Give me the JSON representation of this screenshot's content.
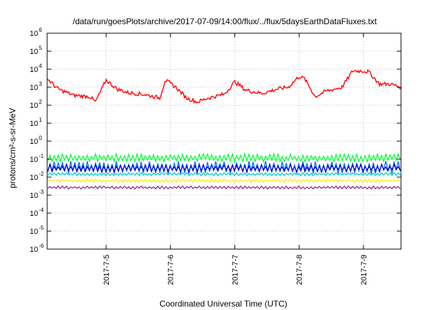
{
  "chart_data": {
    "type": "line",
    "title": "/data/run/goesPlots/archive/2017-07-09/14:00/flux/../flux/5daysEarthDataFluxes.txt",
    "xlabel": "Coordinated Universal Time (UTC)",
    "ylabel": "protons/cm²-s-sr-MeV",
    "y_scale": "log",
    "ylim": [
      1e-06,
      1000000.0
    ],
    "y_ticks": [
      {
        "base": "10",
        "exp": "-6"
      },
      {
        "base": "10",
        "exp": "-5"
      },
      {
        "base": "10",
        "exp": "-4"
      },
      {
        "base": "10",
        "exp": "-3"
      },
      {
        "base": "10",
        "exp": "-2"
      },
      {
        "base": "10",
        "exp": "-1"
      },
      {
        "base": "10",
        "exp": "0"
      },
      {
        "base": "10",
        "exp": "1"
      },
      {
        "base": "10",
        "exp": "2"
      },
      {
        "base": "10",
        "exp": "3"
      },
      {
        "base": "10",
        "exp": "4"
      },
      {
        "base": "10",
        "exp": "5"
      },
      {
        "base": "10",
        "exp": "6"
      }
    ],
    "x_ticks": [
      "2017-7-5",
      "2017-7-6",
      "2017-7-7",
      "2017-7-8",
      "2017-7-9"
    ],
    "xlim": [
      "2017-07-04 02:00",
      "2017-07-09 14:00"
    ],
    "grid": true,
    "series": [
      {
        "color": "#ff0000",
        "x": [
          "2017-07-04 02:00",
          "2017-07-04 06:00",
          "2017-07-04 12:00",
          "2017-07-04 18:00",
          "2017-07-04 20:00",
          "2017-07-05 00:00",
          "2017-07-05 04:00",
          "2017-07-05 08:00",
          "2017-07-05 14:00",
          "2017-07-05 20:00",
          "2017-07-05 22:00",
          "2017-07-06 02:00",
          "2017-07-06 06:00",
          "2017-07-06 10:00",
          "2017-07-06 14:00",
          "2017-07-06 20:00",
          "2017-07-07 00:00",
          "2017-07-07 04:00",
          "2017-07-07 10:00",
          "2017-07-07 16:00",
          "2017-07-07 20:00",
          "2017-07-08 00:00",
          "2017-07-08 02:00",
          "2017-07-08 06:00",
          "2017-07-08 10:00",
          "2017-07-08 16:00",
          "2017-07-08 20:00",
          "2017-07-09 00:00",
          "2017-07-09 02:00",
          "2017-07-09 06:00",
          "2017-07-09 10:00",
          "2017-07-09 14:00"
        ],
        "values": [
          3000,
          800,
          350,
          300,
          150,
          2500,
          800,
          500,
          400,
          250,
          2500,
          1000,
          250,
          150,
          250,
          400,
          2000,
          700,
          450,
          800,
          1000,
          4000,
          3000,
          300,
          600,
          1000,
          8000,
          8000,
          7000,
          1500,
          1500,
          1000
        ]
      },
      {
        "color": "#00ff33",
        "band": [
          0.07,
          0.2
        ]
      },
      {
        "color": "#0066ff",
        "band": [
          0.015,
          0.08
        ]
      },
      {
        "color": "#0000cc",
        "band": [
          0.02,
          0.05
        ]
      },
      {
        "color": "#00c8c8",
        "band": [
          0.012,
          0.018
        ]
      },
      {
        "color": "#ffee00",
        "band": [
          0.005,
          0.008
        ]
      },
      {
        "color": "#8b2a8b",
        "band": [
          0.0022,
          0.0032
        ]
      }
    ]
  }
}
